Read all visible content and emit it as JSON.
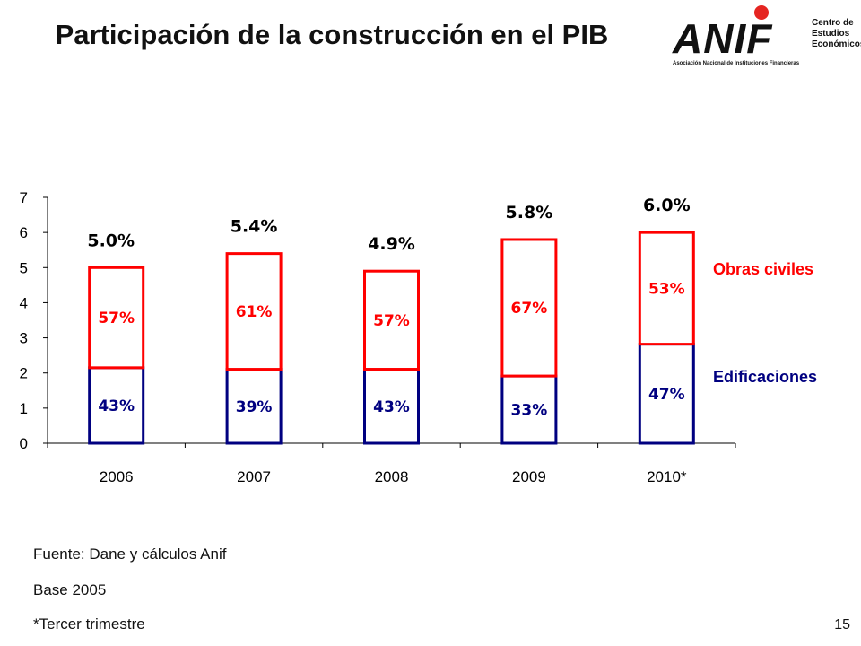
{
  "slide": {
    "title": "Participación de la construcción en el PIB",
    "page_number": "15"
  },
  "logo": {
    "wordmark": "ANIF",
    "center_lines": [
      "Centro de",
      "Estudios",
      "Económicos"
    ],
    "association": "Asociación Nacional de Instituciones Financieras"
  },
  "footer": {
    "source": "Fuente: Dane y cálculos Anif",
    "base": "Base 2005",
    "note": "*Tercer trimestre"
  },
  "chart_data": {
    "type": "bar",
    "stacked": true,
    "categories": [
      "2006",
      "2007",
      "2008",
      "2009",
      "2010*"
    ],
    "totals": [
      5.0,
      5.4,
      4.9,
      5.8,
      6.0
    ],
    "total_labels": [
      "5.0%",
      "5.4%",
      "4.9%",
      "5.8%",
      "6.0%"
    ],
    "series": [
      {
        "name": "Edificaciones",
        "share_labels": [
          "43%",
          "39%",
          "43%",
          "33%",
          "47%"
        ],
        "share": [
          43,
          39,
          43,
          33,
          47
        ],
        "color": "#000080"
      },
      {
        "name": "Obras civiles",
        "share_labels": [
          "57%",
          "61%",
          "57%",
          "67%",
          "53%"
        ],
        "share": [
          57,
          61,
          57,
          67,
          53
        ],
        "color": "#ff0000"
      }
    ],
    "ylim": [
      0,
      7
    ],
    "yticks": [
      0,
      1,
      2,
      3,
      4,
      5,
      6,
      7
    ],
    "legend_position": "right"
  }
}
